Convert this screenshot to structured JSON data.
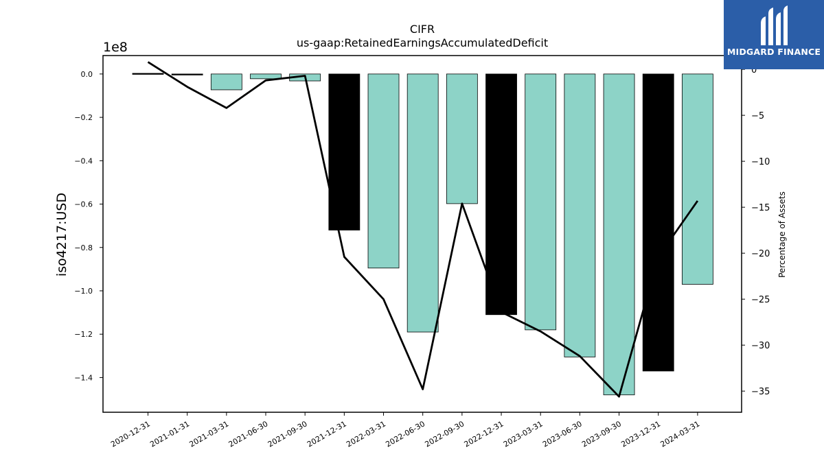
{
  "chart_data": {
    "type": "bar",
    "title": "CIFR",
    "subtitle": "us-gaap:RetainedEarningsAccumulatedDeficit",
    "ylabel": "iso4217:USD",
    "y_offset_label": "1e8",
    "y2label": "Percentage of Assets",
    "ylim": [
      -1.56,
      0.085
    ],
    "y2lim": [
      -37.3,
      1.5
    ],
    "y_ticks": [
      "0.0",
      "−0.2",
      "−0.4",
      "−0.6",
      "−0.8",
      "−1.0",
      "−1.2",
      "−1.4"
    ],
    "y2_ticks": [
      "0",
      "−5",
      "−10",
      "−15",
      "−20",
      "−25",
      "−30",
      "−35"
    ],
    "categories": [
      "2020-12-31",
      "2021-01-31",
      "2021-03-31",
      "2021-06-30",
      "2021-09-30",
      "2021-12-31",
      "2022-03-31",
      "2022-06-30",
      "2022-09-30",
      "2022-12-31",
      "2023-03-31",
      "2023-06-30",
      "2023-09-30",
      "2023-12-31",
      "2024-03-31"
    ],
    "series": [
      {
        "kind": "bar",
        "values": [
          0.003,
          -0.001,
          -0.073,
          -0.022,
          -0.032,
          -0.72,
          -0.895,
          -1.19,
          -0.598,
          -1.11,
          -1.18,
          -1.305,
          -1.48,
          -1.37,
          -0.97
        ],
        "colors": [
          "#000000",
          "#000000",
          "#8dd3c7",
          "#8dd3c7",
          "#8dd3c7",
          "#000000",
          "#8dd3c7",
          "#8dd3c7",
          "#8dd3c7",
          "#000000",
          "#8dd3c7",
          "#8dd3c7",
          "#8dd3c7",
          "#000000",
          "#8dd3c7"
        ]
      },
      {
        "kind": "line",
        "axis": "right",
        "values": [
          0.8,
          -1.9,
          -4.2,
          -1.2,
          -0.7,
          -20.4,
          -25.0,
          -34.8,
          -14.6,
          -26.4,
          -28.5,
          -31.2,
          -35.6,
          -20.4,
          -14.3
        ]
      }
    ],
    "legend": "none"
  },
  "logo": {
    "text": "MIDGARD FINANCE"
  }
}
